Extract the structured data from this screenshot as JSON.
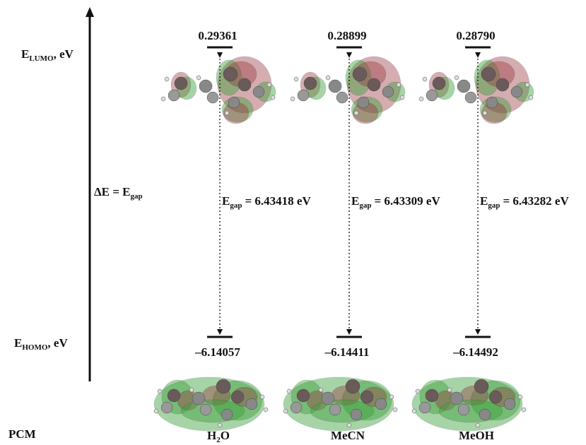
{
  "axis": {
    "lumo_label": {
      "main": "E",
      "sub": "LUMO",
      "suffix": ", eV"
    },
    "gap_label": {
      "main": "ΔE = E",
      "sub": "gap"
    },
    "homo_label": {
      "main": "E",
      "sub": "HOMO",
      "suffix": ", eV"
    },
    "model": "PCM"
  },
  "columns": [
    {
      "lumo": "0.29361",
      "homo": "–6.14057",
      "gap": {
        "main": "E",
        "sub": "gap",
        "value": "= 6.43418 eV"
      },
      "solvent": {
        "main": "H",
        "sub": "2",
        "rest": "O"
      }
    },
    {
      "lumo": "0.28899",
      "homo": "–6.14411",
      "gap": {
        "main": "E",
        "sub": "gap",
        "value": "= 6.43309 eV"
      },
      "solvent": {
        "main": "MeCN"
      }
    },
    {
      "lumo": "0.28790",
      "homo": "–6.14492",
      "gap": {
        "main": "E",
        "sub": "gap",
        "value": "= 6.43282 eV"
      },
      "solvent": {
        "main": "MeOH"
      }
    }
  ]
}
